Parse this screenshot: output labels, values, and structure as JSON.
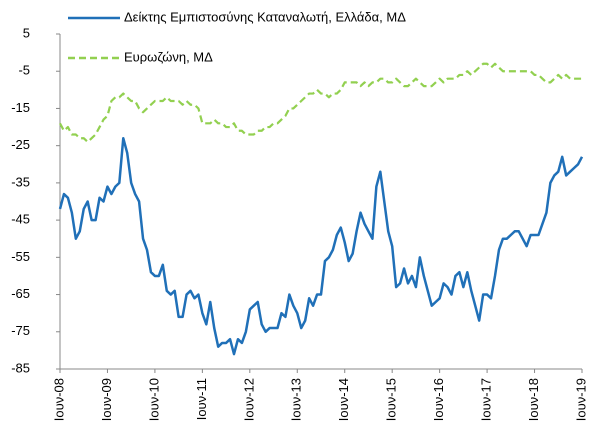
{
  "chart_data": {
    "type": "line",
    "categories": [
      "Ιουν-08",
      null,
      null,
      null,
      null,
      null,
      null,
      null,
      null,
      null,
      null,
      null,
      "Ιουν-09",
      null,
      null,
      null,
      null,
      null,
      null,
      null,
      null,
      null,
      null,
      null,
      "Ιουν-10",
      null,
      null,
      null,
      null,
      null,
      null,
      null,
      null,
      null,
      null,
      null,
      "Ιουν-11",
      null,
      null,
      null,
      null,
      null,
      null,
      null,
      null,
      null,
      null,
      null,
      "Ιουν-12",
      null,
      null,
      null,
      null,
      null,
      null,
      null,
      null,
      null,
      null,
      null,
      "Ιουν-13",
      null,
      null,
      null,
      null,
      null,
      null,
      null,
      null,
      null,
      null,
      null,
      "Ιουν-14",
      null,
      null,
      null,
      null,
      null,
      null,
      null,
      null,
      null,
      null,
      null,
      "Ιουν-15",
      null,
      null,
      null,
      null,
      null,
      null,
      null,
      null,
      null,
      null,
      null,
      "Ιουν-16",
      null,
      null,
      null,
      null,
      null,
      null,
      null,
      null,
      null,
      null,
      null,
      "Ιουν-17",
      null,
      null,
      null,
      null,
      null,
      null,
      null,
      null,
      null,
      null,
      null,
      "Ιουν-18",
      null,
      null,
      null,
      null,
      null,
      null,
      null,
      null,
      null,
      null,
      null,
      "Ιουν-19"
    ],
    "series": [
      {
        "name": "Δείκτης Εμπιστοσύνης Καταναλωτή, Ελλάδα, ΜΔ",
        "color": "#2070b8",
        "dashed": false,
        "values": [
          -42,
          -38,
          -39,
          -43,
          -50,
          -48,
          -42,
          -40,
          -45,
          -45,
          -39,
          -40,
          -36,
          -38,
          -36,
          -35,
          -23,
          -27,
          -35,
          -38,
          -40,
          -50,
          -53,
          -59,
          -60,
          -60,
          -57,
          -64,
          -65,
          -64,
          -71,
          -71,
          -65,
          -64,
          -66,
          -65,
          -70,
          -73,
          -67,
          -74,
          -79,
          -78,
          -78,
          -77,
          -81,
          -77,
          -78,
          -75,
          -69,
          -68,
          -67,
          -73,
          -75,
          -74,
          -74,
          -74,
          -70,
          -71,
          -65,
          -68,
          -70,
          -74,
          -72,
          -66,
          -68,
          -65,
          -65,
          -56,
          -55,
          -53,
          -49,
          -47,
          -51,
          -56,
          -54,
          -48,
          -43,
          -46,
          -48,
          -50,
          -36,
          -32,
          -40,
          -48,
          -52,
          -63,
          -62,
          -58,
          -62,
          -60,
          -63,
          -55,
          -60,
          -64,
          -68,
          -67,
          -66,
          -62,
          -63,
          -65,
          -60,
          -59,
          -63,
          -59,
          -64,
          -68,
          -72,
          -65,
          -65,
          -66,
          -60,
          -53,
          -50,
          -50,
          -49,
          -48,
          -48,
          -50,
          -52,
          -49,
          -49,
          -49,
          -46,
          -43,
          -35,
          -33,
          -32,
          -28,
          -33,
          -32,
          -31,
          -30,
          -28
        ]
      },
      {
        "name": "Ευρωζώνη, ΜΔ",
        "color": "#92d050",
        "dashed": true,
        "values": [
          -19,
          -21,
          -20,
          -22,
          -22,
          -23,
          -23,
          -24,
          -23,
          -22,
          -20,
          -18,
          -17,
          -13,
          -12,
          -12,
          -11,
          -12,
          -13,
          -13,
          -15,
          -16,
          -15,
          -14,
          -13,
          -13,
          -13,
          -12,
          -13,
          -13,
          -13,
          -14,
          -13,
          -14,
          -14,
          -15,
          -19,
          -19,
          -19,
          -18,
          -19,
          -19,
          -20,
          -20,
          -19,
          -21,
          -21,
          -22,
          -22,
          -22,
          -21,
          -21,
          -20,
          -20,
          -19,
          -19,
          -18,
          -17,
          -15,
          -15,
          -14,
          -13,
          -12,
          -11,
          -11,
          -10,
          -11,
          -11,
          -12,
          -11,
          -11,
          -10,
          -8,
          -8,
          -8,
          -8,
          -9,
          -8,
          -9,
          -8,
          -8,
          -7,
          -7,
          -8,
          -8,
          -7,
          -8,
          -9,
          -9,
          -8,
          -7,
          -8,
          -9,
          -9,
          -9,
          -8,
          -7,
          -8,
          -7,
          -7,
          -7,
          -6,
          -6,
          -5,
          -6,
          -5,
          -4,
          -3,
          -3,
          -4,
          -3,
          -4,
          -5,
          -5,
          -5,
          -5,
          -5,
          -5,
          -5,
          -5,
          -6,
          -6,
          -7,
          -8,
          -8,
          -7,
          -6,
          -7,
          -6,
          -7,
          -7,
          -7,
          -7
        ]
      }
    ],
    "ylim": [
      -85,
      5
    ],
    "yticks": [
      5,
      -5,
      -15,
      -25,
      -35,
      -45,
      -55,
      -65,
      -75,
      -85
    ],
    "grid": false
  }
}
